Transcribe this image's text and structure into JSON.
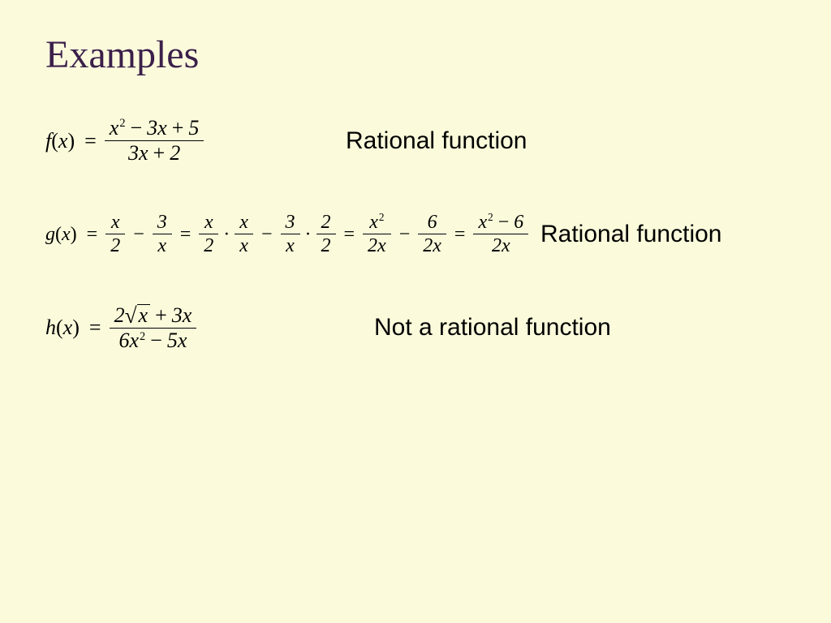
{
  "colors": {
    "background": "#fbfbdc",
    "title": "#3b1f4a",
    "text": "#000000"
  },
  "title": "Examples",
  "rows": [
    {
      "lhs_func": "f",
      "lhs_arg": "x",
      "num1": "x² − 3x + 5",
      "den1": "3x + 2",
      "label": "Rational function"
    },
    {
      "lhs_func": "g",
      "lhs_arg": "x",
      "f1_num": "x",
      "f1_den": "2",
      "f2_num": "3",
      "f2_den": "x",
      "f3_num": "x",
      "f3_den": "2",
      "f4_num": "x",
      "f4_den": "x",
      "f5_num": "3",
      "f5_den": "x",
      "f6_num": "2",
      "f6_den": "2",
      "f7_num": "x²",
      "f7_den": "2x",
      "f8_num": "6",
      "f8_den": "2x",
      "f9_num": "x² − 6",
      "f9_den": "2x",
      "label": "Rational function"
    },
    {
      "lhs_func": "h",
      "lhs_arg": "x",
      "num_pre": "2",
      "num_rad": "x",
      "num_post": " + 3x",
      "den": "6x² − 5x",
      "label": "Not a rational function"
    }
  ]
}
